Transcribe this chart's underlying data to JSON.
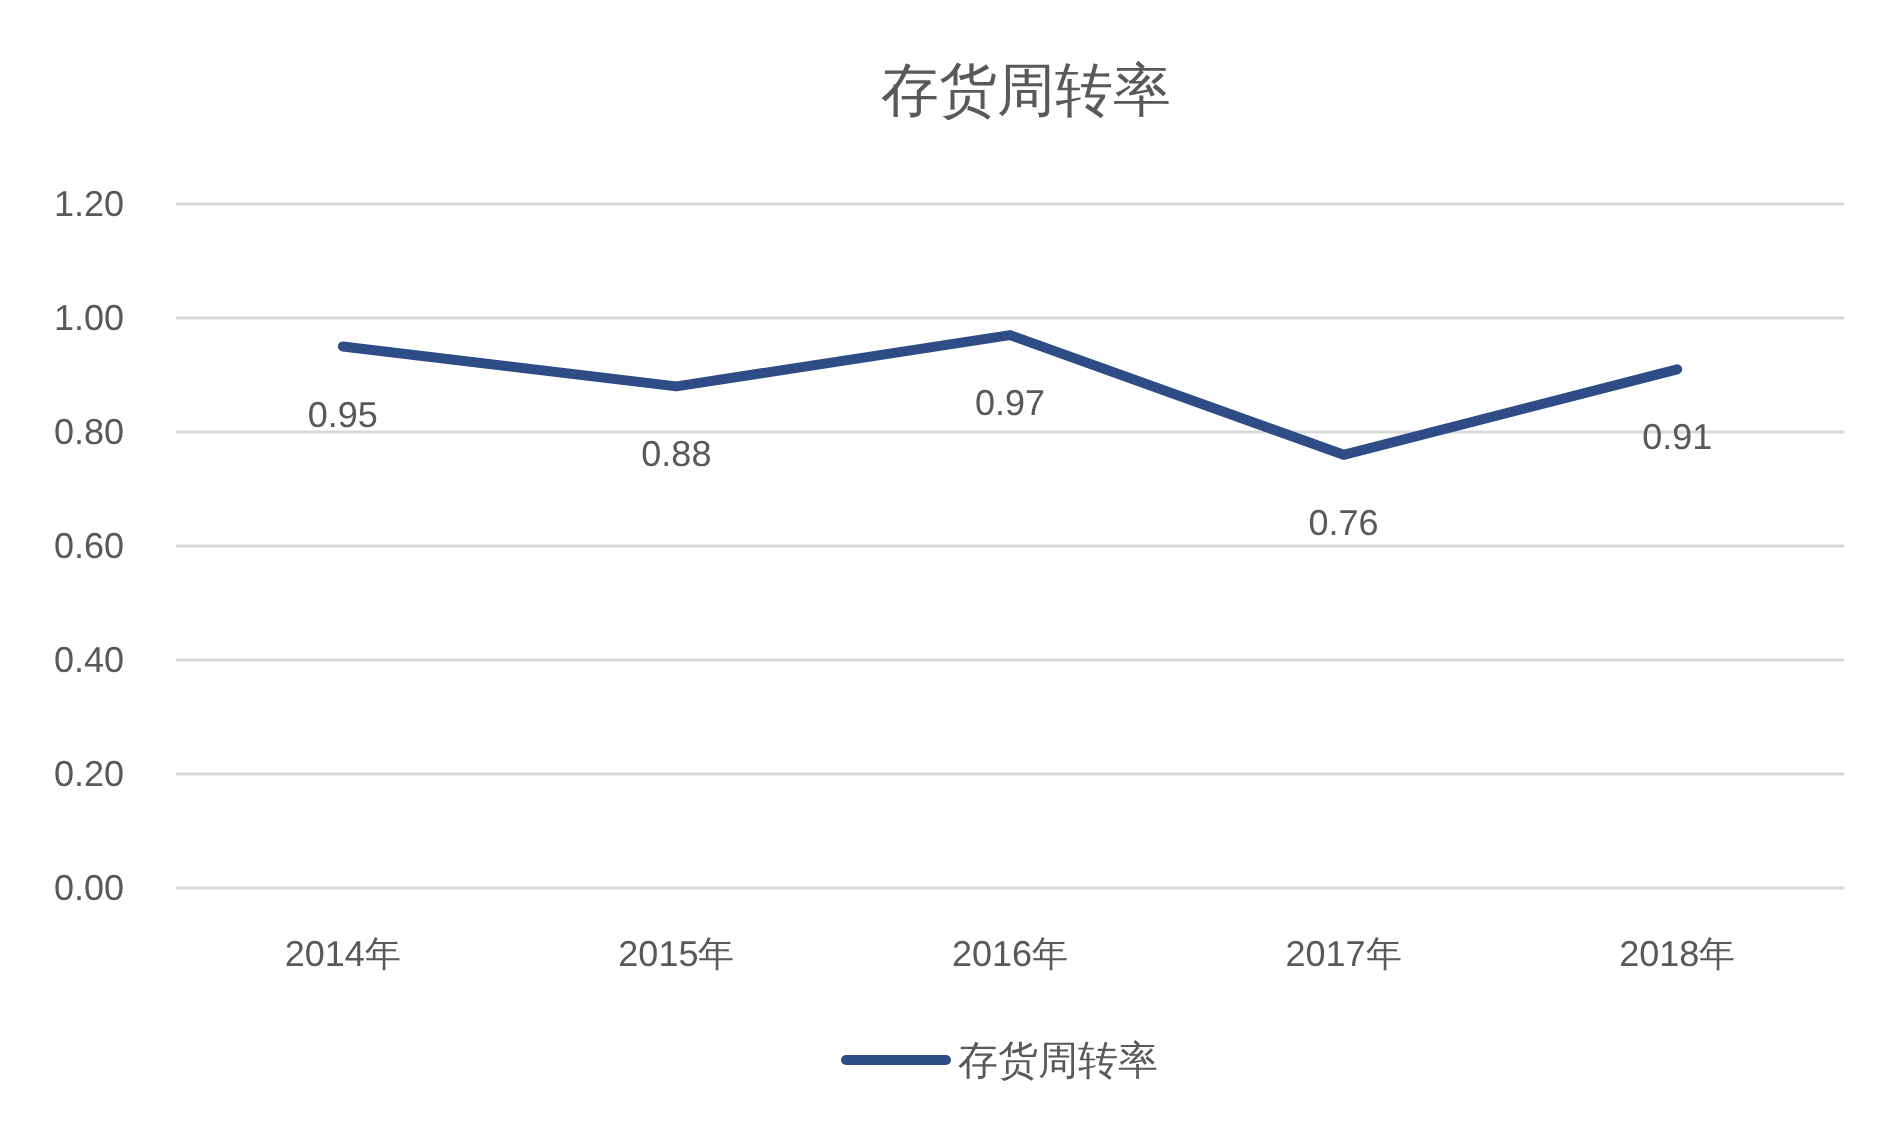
{
  "chart_data": {
    "type": "line",
    "title": "存货周转率",
    "categories": [
      "2014年",
      "2015年",
      "2016年",
      "2017年",
      "2018年"
    ],
    "series": [
      {
        "name": "存货周转率",
        "color": "#2e4d86",
        "values": [
          0.95,
          0.88,
          0.97,
          0.76,
          0.91
        ]
      }
    ],
    "ylim": [
      0,
      1.2
    ],
    "yticks": [
      {
        "value": 0,
        "label": "0.00"
      },
      {
        "value": 0.2,
        "label": "0.20"
      },
      {
        "value": 0.4,
        "label": "0.40"
      },
      {
        "value": 0.6,
        "label": "0.60"
      },
      {
        "value": 0.8,
        "label": "0.80"
      },
      {
        "value": 1.0,
        "label": "1.00"
      },
      {
        "value": 1.2,
        "label": "1.20"
      }
    ],
    "grid": "y",
    "legend": "bottom",
    "data_labels": true
  }
}
